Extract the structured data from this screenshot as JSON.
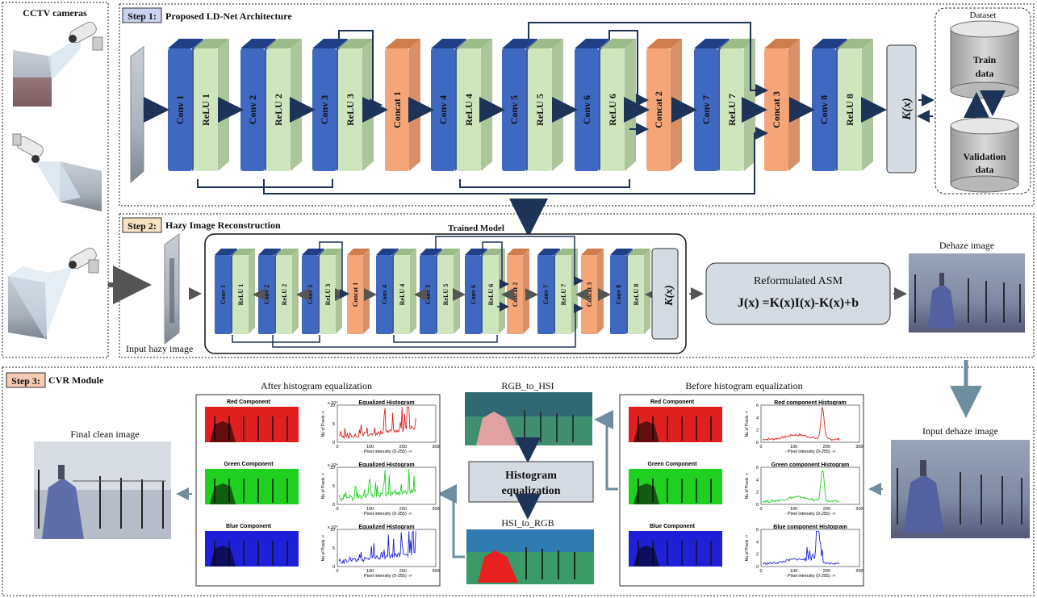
{
  "cctv": {
    "title": "CCTV cameras"
  },
  "step1": {
    "badge": "Step 1:",
    "title": "Proposed LD-Net Architecture",
    "layers": [
      {
        "label": "Conv 1",
        "kind": "conv"
      },
      {
        "label": "ReLU 1",
        "kind": "relu"
      },
      {
        "label": "Conv 2",
        "kind": "conv"
      },
      {
        "label": "ReLU 2",
        "kind": "relu"
      },
      {
        "label": "Conv 3",
        "kind": "conv"
      },
      {
        "label": "ReLU 3",
        "kind": "relu"
      },
      {
        "label": "Concat 1",
        "kind": "concat"
      },
      {
        "label": "Conv 4",
        "kind": "conv"
      },
      {
        "label": "ReLU 4",
        "kind": "relu"
      },
      {
        "label": "Conv 5",
        "kind": "conv"
      },
      {
        "label": "ReLU 5",
        "kind": "relu"
      },
      {
        "label": "Conv 6",
        "kind": "conv"
      },
      {
        "label": "ReLU 6",
        "kind": "relu"
      },
      {
        "label": "Concat 2",
        "kind": "concat"
      },
      {
        "label": "Conv 7",
        "kind": "conv"
      },
      {
        "label": "ReLU 7",
        "kind": "relu"
      },
      {
        "label": "Concat 3",
        "kind": "concat"
      },
      {
        "label": "Conv 8",
        "kind": "conv"
      },
      {
        "label": "ReLU 8",
        "kind": "relu"
      }
    ],
    "kx": "K(x)",
    "dataset": {
      "title": "Dataset",
      "train": "Train data",
      "validation": "Validation data"
    }
  },
  "step2": {
    "badge": "Step 2:",
    "title": "Hazy Image Reconstruction",
    "trained_model": "Trained Model",
    "input_label": "Input hazy image",
    "kx": "K(x)",
    "asm_title": "Reformulated ASM",
    "asm_formula": "J(x) =K(x)I(x)-K(x)+b",
    "dehaze_label": "Dehaze image"
  },
  "step3": {
    "badge": "Step 3:",
    "title": "CVR Module",
    "final_label": "Final clean image",
    "after_label": "After histogram equalization",
    "before_label": "Before histogram equalization",
    "rgb_to_hsi": "RGB_to_HSI",
    "hsi_to_rgb": "HSI_to_RGB",
    "hist_eq": "Histogram equalization",
    "input_dehaze": "Input dehaze image",
    "after_panels": [
      {
        "component": "Red Component",
        "hist_title": "Equalized Histogram",
        "color": "#e02020"
      },
      {
        "component": "Green Component",
        "hist_title": "Equalized Histogram",
        "color": "#20d020"
      },
      {
        "component": "Blue Component",
        "hist_title": "Equalized Histogram",
        "color": "#2020d8"
      }
    ],
    "before_panels": [
      {
        "component": "Red Component",
        "hist_title": "Red component Histogram",
        "color": "#e02020"
      },
      {
        "component": "Green Component",
        "hist_title": "Green component Histogram",
        "color": "#20d020"
      },
      {
        "component": "Blue Component",
        "hist_title": "Blue component Histogram",
        "color": "#2020d8"
      }
    ],
    "axis": {
      "xlabel": "- Pixel intensity (0-255) ->",
      "ylabel": "No of Pixels ->",
      "x_ticks": [
        "0",
        "100",
        "200",
        "300"
      ],
      "y_ticks_after": [
        "0",
        "5",
        "10"
      ],
      "y_ticks_before": [
        "0",
        "2",
        "4",
        "6"
      ],
      "exponent": "x 10⁴"
    }
  },
  "colors": {
    "conv": "#3f68c0",
    "relu": "#cfe5be",
    "concat": "#f4a679",
    "arrow": "#1e3358",
    "teal_arrow": "#6e8ea0",
    "badge1": "#c9d3ee",
    "badge2": "#f7e3c4",
    "badge3": "#f6cbb3"
  }
}
